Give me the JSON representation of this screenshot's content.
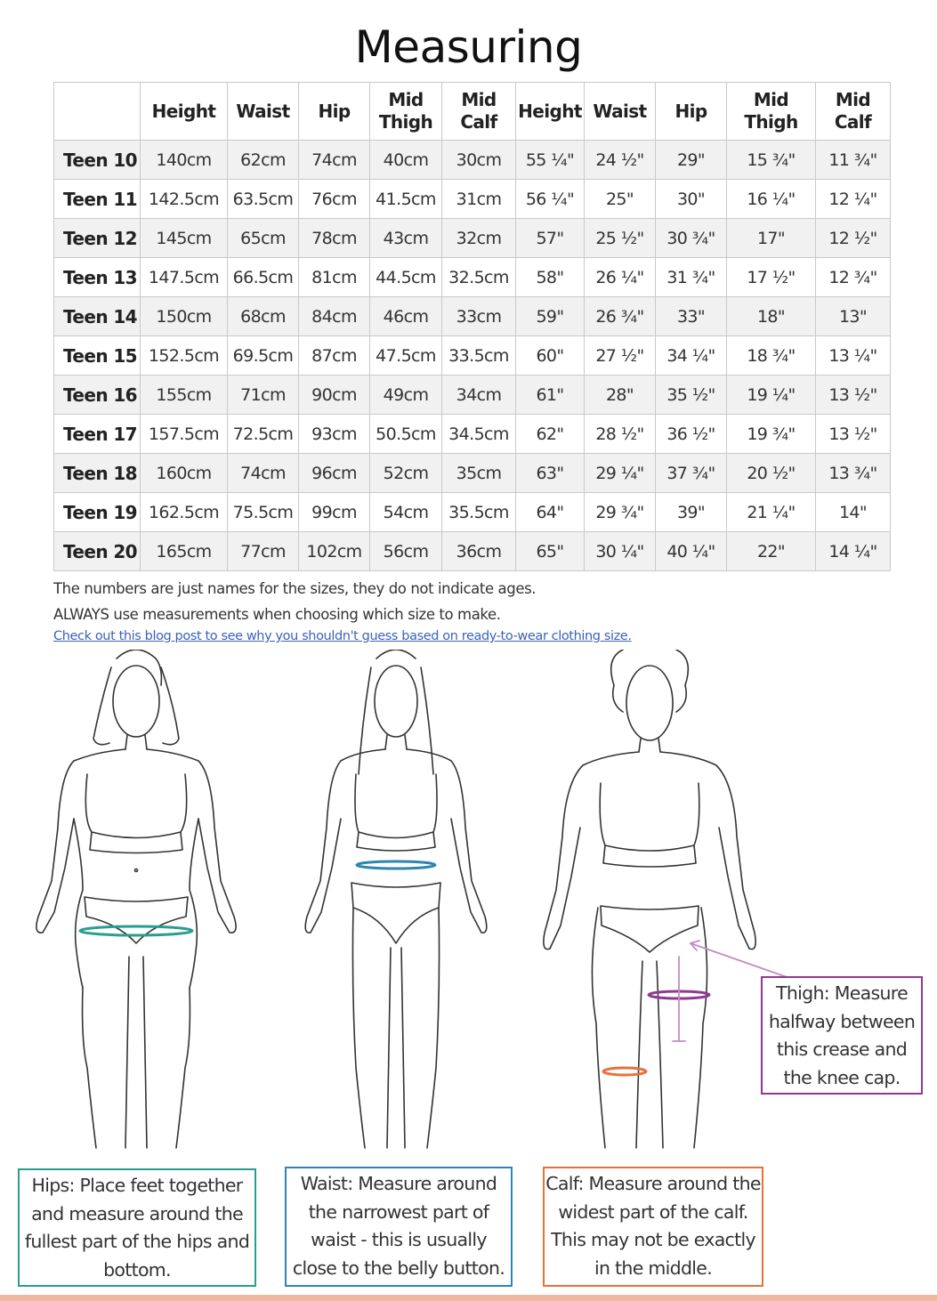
{
  "title": "Measuring",
  "table": {
    "headers": [
      "",
      "Height",
      "Waist",
      "Hip",
      "Mid\nThigh",
      "Mid\nCalf",
      "Height",
      "Waist",
      "Hip",
      "Mid\nThigh",
      "Mid\nCalf"
    ],
    "rows": [
      [
        "Teen 10",
        "140cm",
        "62cm",
        "74cm",
        "40cm",
        "30cm",
        "55 ¼\"",
        "24 ½\"",
        "29\"",
        "15 ¾\"",
        "11 ¾\""
      ],
      [
        "Teen 11",
        "142.5cm",
        "63.5cm",
        "76cm",
        "41.5cm",
        "31cm",
        "56 ¼\"",
        "25\"",
        "30\"",
        "16 ¼\"",
        "12 ¼\""
      ],
      [
        "Teen 12",
        "145cm",
        "65cm",
        "78cm",
        "43cm",
        "32cm",
        "57\"",
        "25 ½\"",
        "30 ¾\"",
        "17\"",
        "12 ½\""
      ],
      [
        "Teen 13",
        "147.5cm",
        "66.5cm",
        "81cm",
        "44.5cm",
        "32.5cm",
        "58\"",
        "26 ¼\"",
        "31 ¾\"",
        "17 ½\"",
        "12 ¾\""
      ],
      [
        "Teen 14",
        "150cm",
        "68cm",
        "84cm",
        "46cm",
        "33cm",
        "59\"",
        "26 ¾\"",
        "33\"",
        "18\"",
        "13\""
      ],
      [
        "Teen 15",
        "152.5cm",
        "69.5cm",
        "87cm",
        "47.5cm",
        "33.5cm",
        "60\"",
        "27 ½\"",
        "34 ¼\"",
        "18 ¾\"",
        "13 ¼\""
      ],
      [
        "Teen 16",
        "155cm",
        "71cm",
        "90cm",
        "49cm",
        "34cm",
        "61\"",
        "28\"",
        "35 ½\"",
        "19 ¼\"",
        "13 ½\""
      ],
      [
        "Teen 17",
        "157.5cm",
        "72.5cm",
        "93cm",
        "50.5cm",
        "34.5cm",
        "62\"",
        "28 ½\"",
        "36 ½\"",
        "19 ¾\"",
        "13 ½\""
      ],
      [
        "Teen 18",
        "160cm",
        "74cm",
        "96cm",
        "52cm",
        "35cm",
        "63\"",
        "29 ¼\"",
        "37 ¾\"",
        "20 ½\"",
        "13 ¾\""
      ],
      [
        "Teen 19",
        "162.5cm",
        "75.5cm",
        "99cm",
        "54cm",
        "35.5cm",
        "64\"",
        "29 ¾\"",
        "39\"",
        "21 ¼\"",
        "14\""
      ],
      [
        "Teen 20",
        "165cm",
        "77cm",
        "102cm",
        "56cm",
        "36cm",
        "65\"",
        "30 ¼\"",
        "40 ¼\"",
        "22\"",
        "14 ¼\""
      ]
    ]
  },
  "notes": {
    "line1": "The numbers are just names for the sizes, they do not indicate ages.",
    "line2": "ALWAYS use measurements when choosing which size to make.",
    "link": "Check out this blog post to see why you shouldn't guess based on ready-to-wear clothing size."
  },
  "callouts": {
    "hips": "Hips: Place feet together and measure around the fullest part of the hips and bottom.",
    "waist": "Waist: Measure around the narrowest part of waist - this is usually close to the belly button.",
    "calf": "Calf: Measure around the widest part of the calf. This may not be exactly in the middle.",
    "thigh": "Thigh: Measure halfway between this crease and the knee cap."
  },
  "colors": {
    "hips": "#2a9d8f",
    "waist": "#2e86b0",
    "calf": "#e8703a",
    "thigh": "#8e3a8e",
    "accent_bar": "#f0b7a3"
  }
}
